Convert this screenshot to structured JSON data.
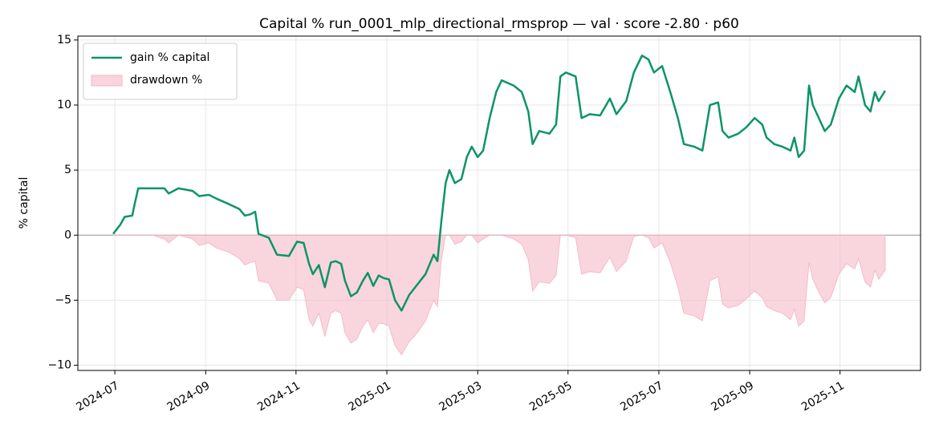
{
  "chart_data": {
    "type": "line",
    "title": "Capital % run_0001_mlp_directional_rmsprop — val · score -2.80 · p60",
    "y_label": "% capital",
    "x": [
      2024.497,
      2024.51,
      2024.518,
      2024.532,
      2024.537,
      2024.543,
      2024.569,
      2024.591,
      2024.599,
      2024.617,
      2024.643,
      2024.655,
      2024.673,
      2024.687,
      2024.709,
      2024.729,
      2024.739,
      2024.749,
      2024.758,
      2024.764,
      2024.783,
      2024.798,
      2024.82,
      2024.835,
      2024.847,
      2024.857,
      2024.864,
      2024.875,
      2024.886,
      2024.897,
      2024.906,
      2024.916,
      2024.923,
      2024.934,
      2024.945,
      2024.956,
      2024.965,
      2024.975,
      2024.985,
      2024.994,
      2025.004,
      2025.015,
      2025.027,
      2025.041,
      2025.056,
      2025.071,
      2025.086,
      2025.093,
      2025.1,
      2025.108,
      2025.115,
      2025.125,
      2025.137,
      2025.147,
      2025.156,
      2025.167,
      2025.177,
      2025.189,
      2025.201,
      2025.211,
      2025.233,
      2025.248,
      2025.26,
      2025.268,
      2025.28,
      2025.299,
      2025.311,
      2025.319,
      2025.329,
      2025.347,
      2025.358,
      2025.373,
      2025.392,
      2025.41,
      2025.422,
      2025.44,
      2025.454,
      2025.469,
      2025.481,
      2025.491,
      2025.506,
      2025.521,
      2025.535,
      2025.546,
      2025.565,
      2025.58,
      2025.594,
      2025.609,
      2025.617,
      2025.628,
      2025.646,
      2025.661,
      2025.676,
      2025.69,
      2025.698,
      2025.712,
      2025.727,
      2025.742,
      2025.749,
      2025.757,
      2025.767,
      2025.776,
      2025.783,
      2025.794,
      2025.805,
      2025.816,
      2025.831,
      2025.845,
      2025.86,
      2025.867,
      2025.879,
      2025.889,
      2025.897,
      2025.904,
      2025.916
    ],
    "series": [
      {
        "name": "gain % capital",
        "color": "#0c9467",
        "fill": false,
        "values": [
          0.1,
          0.8,
          1.4,
          1.5,
          2.5,
          3.6,
          3.6,
          3.6,
          3.2,
          3.6,
          3.4,
          3.0,
          3.1,
          2.8,
          2.4,
          2.0,
          1.5,
          1.6,
          1.8,
          0.1,
          -0.2,
          -1.5,
          -1.6,
          -0.5,
          -0.6,
          -2.2,
          -3.0,
          -2.3,
          -4.0,
          -2.1,
          -2.0,
          -2.2,
          -3.5,
          -4.7,
          -4.4,
          -3.5,
          -2.9,
          -3.9,
          -3.1,
          -3.3,
          -3.4,
          -5.0,
          -5.8,
          -4.6,
          -3.8,
          -3.0,
          -1.5,
          -2.0,
          1.0,
          4.0,
          5.0,
          4.0,
          4.3,
          6.0,
          6.8,
          6.0,
          6.5,
          9.0,
          11.0,
          11.9,
          11.5,
          11.0,
          9.5,
          7.0,
          8.0,
          7.8,
          8.5,
          12.2,
          12.5,
          12.2,
          9.0,
          9.3,
          9.2,
          10.5,
          9.3,
          10.3,
          12.5,
          13.8,
          13.5,
          12.5,
          13.0,
          11.0,
          9.0,
          7.0,
          6.8,
          6.5,
          10.0,
          10.2,
          8.0,
          7.5,
          7.8,
          8.3,
          9.0,
          8.5,
          7.5,
          7.0,
          6.8,
          6.5,
          7.5,
          6.0,
          6.5,
          11.5,
          10.0,
          9.0,
          8.0,
          8.5,
          10.5,
          11.5,
          11.0,
          12.2,
          10.0,
          9.5,
          11.0,
          10.3,
          11.1
        ]
      },
      {
        "name": "drawdown %",
        "color": "#f4b3c2",
        "fill": true,
        "values": [
          0,
          0,
          0,
          0,
          0,
          0,
          0,
          -0.3,
          -0.6,
          0,
          -0.3,
          -0.8,
          -0.6,
          -1.0,
          -1.3,
          -1.8,
          -2.3,
          -2.1,
          -2.0,
          -3.5,
          -3.7,
          -5.0,
          -5.0,
          -4.0,
          -4.2,
          -6.5,
          -7.0,
          -6.0,
          -7.8,
          -6.0,
          -5.8,
          -6.0,
          -7.5,
          -8.3,
          -8.0,
          -7.0,
          -6.5,
          -7.5,
          -6.8,
          -6.8,
          -7.0,
          -8.5,
          -9.2,
          -8.2,
          -7.5,
          -6.6,
          -5.0,
          -5.5,
          -2.0,
          0,
          0,
          -0.7,
          -0.5,
          0,
          0,
          -0.6,
          -0.3,
          0,
          0,
          0,
          -0.3,
          -0.7,
          -1.9,
          -4.3,
          -3.6,
          -3.7,
          -3.1,
          0,
          0,
          -0.2,
          -3.0,
          -2.8,
          -2.9,
          -1.7,
          -2.8,
          -2.0,
          -0.1,
          0,
          -0.2,
          -1.0,
          -0.6,
          -2.1,
          -4.0,
          -6.0,
          -6.2,
          -6.6,
          -3.5,
          -3.2,
          -5.3,
          -5.6,
          -5.4,
          -4.9,
          -4.3,
          -4.8,
          -5.5,
          -5.8,
          -6.0,
          -6.5,
          -5.7,
          -7.0,
          -6.6,
          -2.1,
          -3.4,
          -4.4,
          -5.2,
          -4.8,
          -3.0,
          -2.2,
          -2.6,
          -1.8,
          -3.6,
          -4.0,
          -2.7,
          -3.4,
          -2.7
        ]
      }
    ],
    "xlim": [
      2024.432,
      2025.981
    ],
    "ylim": [
      -10.4,
      15.3
    ],
    "xticks": [
      {
        "value": 2024.5,
        "label": "2024-07"
      },
      {
        "value": 2024.667,
        "label": "2024-09"
      },
      {
        "value": 2024.833,
        "label": "2024-11"
      },
      {
        "value": 2025.0,
        "label": "2025-01"
      },
      {
        "value": 2025.167,
        "label": "2025-03"
      },
      {
        "value": 2025.333,
        "label": "2025-05"
      },
      {
        "value": 2025.5,
        "label": "2025-07"
      },
      {
        "value": 2025.667,
        "label": "2025-09"
      },
      {
        "value": 2025.833,
        "label": "2025-11"
      }
    ],
    "yticks": [
      {
        "value": -10,
        "label": "−10"
      },
      {
        "value": -5,
        "label": "−5"
      },
      0,
      5,
      10,
      15
    ],
    "grid": true,
    "legend": "upper left"
  }
}
